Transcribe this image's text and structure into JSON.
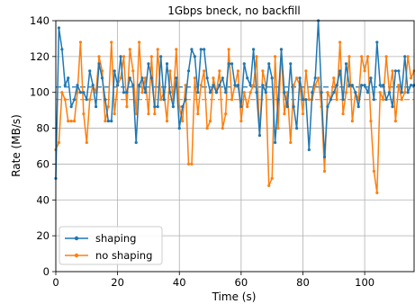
{
  "chart_data": {
    "type": "line",
    "title": "1Gbps bneck, no backfill",
    "xlabel": "Time (s)",
    "ylabel": "Rate (MB/s)",
    "xlim": [
      0,
      116
    ],
    "ylim": [
      0,
      140
    ],
    "xticks": [
      0,
      20,
      40,
      60,
      80,
      100
    ],
    "yticks": [
      0,
      20,
      40,
      60,
      80,
      100,
      120,
      140
    ],
    "grid": true,
    "legend_position": "lower-left",
    "series": [
      {
        "name": "shaping",
        "color": "#1f77b4",
        "mean": 103,
        "x": [
          0,
          1,
          2,
          3,
          4,
          5,
          6,
          7,
          8,
          9,
          10,
          11,
          12,
          13,
          14,
          15,
          16,
          17,
          18,
          19,
          20,
          21,
          22,
          23,
          24,
          25,
          26,
          27,
          28,
          29,
          30,
          31,
          32,
          33,
          34,
          35,
          36,
          37,
          38,
          39,
          40,
          41,
          42,
          43,
          44,
          45,
          46,
          47,
          48,
          49,
          50,
          51,
          52,
          53,
          54,
          55,
          56,
          57,
          58,
          59,
          60,
          61,
          62,
          63,
          64,
          65,
          66,
          67,
          68,
          69,
          70,
          71,
          72,
          73,
          74,
          75,
          76,
          77,
          78,
          79,
          80,
          81,
          82,
          83,
          84,
          85,
          86,
          87,
          88,
          89,
          90,
          91,
          92,
          93,
          94,
          95,
          96,
          97,
          98,
          99,
          100,
          101,
          102,
          103,
          104,
          105,
          106,
          107,
          108,
          109,
          110,
          111,
          112,
          113,
          114,
          115,
          116
        ],
        "y": [
          52,
          136,
          124,
          104,
          108,
          92,
          96,
          104,
          100,
          100,
          96,
          112,
          104,
          92,
          116,
          108,
          96,
          84,
          84,
          112,
          104,
          120,
          100,
          100,
          108,
          104,
          72,
          104,
          108,
          100,
          116,
          108,
          92,
          92,
          120,
          96,
          116,
          100,
          92,
          108,
          80,
          92,
          96,
          112,
          124,
          120,
          100,
          124,
          124,
          108,
          100,
          104,
          100,
          104,
          108,
          100,
          116,
          116,
          104,
          104,
          92,
          116,
          108,
          104,
          124,
          100,
          76,
          104,
          100,
          116,
          108,
          72,
          96,
          124,
          100,
          92,
          116,
          92,
          80,
          108,
          96,
          96,
          68,
          100,
          108,
          140,
          100,
          64,
          92,
          96,
          100,
          104,
          112,
          96,
          116,
          104,
          104,
          100,
          92,
          104,
          104,
          100,
          108,
          96,
          128,
          104,
          104,
          96,
          100,
          92,
          112,
          112,
          100,
          120,
          100,
          104,
          104
        ]
      },
      {
        "name": "no shaping",
        "color": "#ff7f0e",
        "mean": 96,
        "x": [
          0,
          1,
          2,
          3,
          4,
          5,
          6,
          7,
          8,
          9,
          10,
          11,
          12,
          13,
          14,
          15,
          16,
          17,
          18,
          19,
          20,
          21,
          22,
          23,
          24,
          25,
          26,
          27,
          28,
          29,
          30,
          31,
          32,
          33,
          34,
          35,
          36,
          37,
          38,
          39,
          40,
          41,
          42,
          43,
          44,
          45,
          46,
          47,
          48,
          49,
          50,
          51,
          52,
          53,
          54,
          55,
          56,
          57,
          58,
          59,
          60,
          61,
          62,
          63,
          64,
          65,
          66,
          67,
          68,
          69,
          70,
          71,
          72,
          73,
          74,
          75,
          76,
          77,
          78,
          79,
          80,
          81,
          82,
          83,
          84,
          85,
          86,
          87,
          88,
          89,
          90,
          91,
          92,
          93,
          94,
          95,
          96,
          97,
          98,
          99,
          100,
          101,
          102,
          103,
          104,
          105,
          106,
          107,
          108,
          109,
          110,
          111,
          112,
          113,
          114,
          115,
          116
        ],
        "y": [
          68,
          72,
          100,
          96,
          84,
          84,
          84,
          100,
          128,
          88,
          72,
          96,
          104,
          100,
          120,
          112,
          84,
          92,
          128,
          88,
          104,
          108,
          120,
          92,
          124,
          112,
          88,
          128,
          100,
          108,
          88,
          120,
          88,
          124,
          96,
          100,
          84,
          112,
          96,
          124,
          92,
          84,
          104,
          60,
          60,
          108,
          88,
          104,
          112,
          80,
          84,
          108,
          100,
          112,
          80,
          88,
          124,
          96,
          104,
          112,
          84,
          100,
          92,
          100,
          104,
          120,
          76,
          112,
          104,
          48,
          52,
          120,
          80,
          124,
          88,
          100,
          72,
          104,
          108,
          104,
          88,
          112,
          96,
          96,
          104,
          108,
          92,
          56,
          100,
          96,
          108,
          96,
          128,
          88,
          100,
          120,
          84,
          100,
          96,
          120,
          112,
          120,
          84,
          56,
          44,
          100,
          96,
          120,
          100,
          112,
          84,
          104,
          96,
          100,
          120,
          108,
          112
        ]
      }
    ]
  }
}
